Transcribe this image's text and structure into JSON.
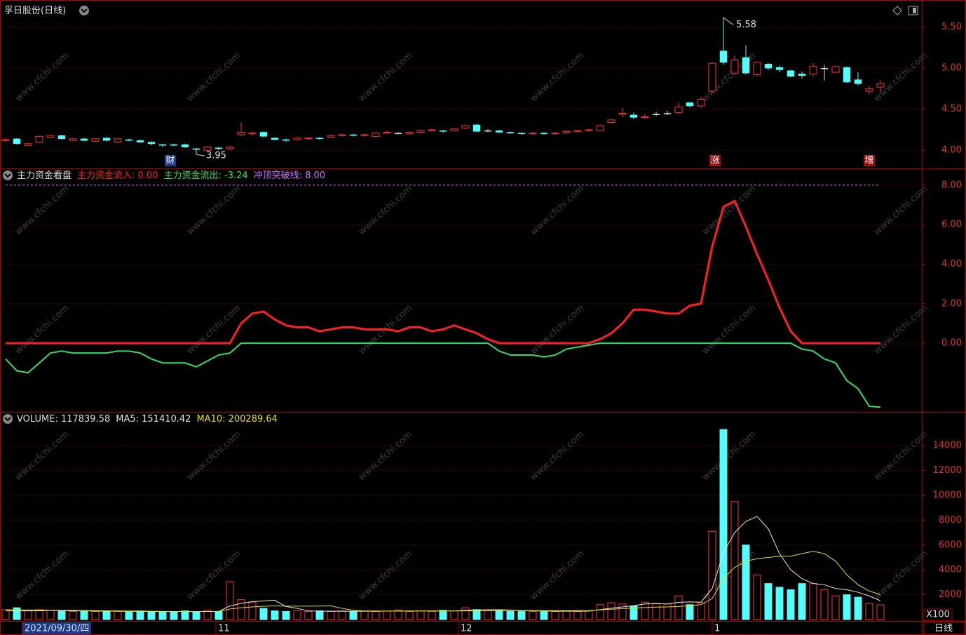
{
  "watermark": "www.cfchi.com",
  "period": "日线",
  "chart_data": [
    {
      "type": "candlestick",
      "title": "孚日股份(日线)",
      "up_color": "#ff3232",
      "down_color": "#54fcfc",
      "flat_color": "#dddddd",
      "ylim": [
        3.78,
        5.83
      ],
      "yticks": [
        {
          "value": 4,
          "label": "4.00"
        },
        {
          "value": 4.5,
          "label": "4.50"
        },
        {
          "value": 5,
          "label": "5.00"
        },
        {
          "value": 5.5,
          "label": "5.50"
        }
      ],
      "grid": true,
      "open": [
        4.12,
        4.14,
        4.06,
        4.1,
        4.16,
        4.18,
        4.12,
        4.14,
        4.11,
        4.15,
        4.1,
        4.13,
        4.12,
        4.1,
        4.07,
        4.07,
        4.07,
        4.02,
        4.0,
        4.03,
        4.02,
        4.19,
        4.2,
        4.22,
        4.15,
        4.13,
        4.13,
        4.14,
        4.15,
        4.16,
        4.18,
        4.19,
        4.18,
        4.17,
        4.21,
        4.21,
        4.2,
        4.22,
        4.24,
        4.24,
        4.24,
        4.27,
        4.31,
        4.24,
        4.24,
        4.22,
        4.21,
        4.2,
        4.21,
        4.2,
        4.21,
        4.23,
        4.24,
        4.24,
        4.34,
        4.44,
        4.43,
        4.4,
        4.44,
        4.45,
        4.46,
        4.58,
        4.54,
        4.72,
        5.21,
        4.94,
        5.13,
        4.92,
        5.05,
        5.01,
        4.97,
        4.93,
        4.93,
        5.0,
        4.95,
        5.01,
        4.86,
        4.72,
        4.77
      ],
      "close": [
        4.13,
        4.08,
        4.08,
        4.17,
        4.18,
        4.14,
        4.14,
        4.12,
        4.14,
        4.12,
        4.14,
        4.12,
        4.1,
        4.08,
        4.06,
        4.06,
        4.04,
        4.01,
        4.04,
        4.02,
        4.04,
        4.22,
        4.21,
        4.17,
        4.13,
        4.12,
        4.15,
        4.15,
        4.14,
        4.18,
        4.19,
        4.18,
        4.19,
        4.21,
        4.22,
        4.21,
        4.22,
        4.24,
        4.25,
        4.23,
        4.26,
        4.3,
        4.23,
        4.24,
        4.22,
        4.21,
        4.2,
        4.21,
        4.2,
        4.21,
        4.23,
        4.24,
        4.25,
        4.3,
        4.37,
        4.45,
        4.4,
        4.41,
        4.44,
        4.45,
        4.53,
        4.54,
        4.62,
        5.06,
        5.07,
        5.1,
        4.94,
        5.07,
        5.0,
        4.98,
        4.9,
        4.91,
        5.02,
        5.0,
        5.02,
        4.83,
        4.81,
        4.75,
        4.81
      ],
      "high": [
        4.15,
        4.15,
        4.09,
        4.18,
        4.19,
        4.19,
        4.15,
        4.15,
        4.15,
        4.16,
        4.15,
        4.14,
        4.13,
        4.11,
        4.08,
        4.08,
        4.08,
        4.03,
        4.05,
        4.04,
        4.05,
        4.34,
        4.23,
        4.23,
        4.16,
        4.14,
        4.16,
        4.16,
        4.16,
        4.19,
        4.2,
        4.2,
        4.2,
        4.22,
        4.24,
        4.22,
        4.23,
        4.25,
        4.26,
        4.25,
        4.27,
        4.31,
        4.32,
        4.26,
        4.25,
        4.23,
        4.22,
        4.22,
        4.22,
        4.22,
        4.24,
        4.25,
        4.26,
        4.31,
        4.38,
        4.52,
        4.46,
        4.44,
        4.47,
        4.48,
        4.58,
        4.59,
        4.65,
        5.07,
        5.58,
        5.15,
        5.28,
        5.08,
        5.06,
        5.03,
        4.98,
        4.96,
        5.06,
        5.04,
        5.03,
        5.02,
        4.95,
        4.78,
        4.85
      ],
      "low": [
        4.1,
        4.07,
        4.05,
        4.09,
        4.15,
        4.13,
        4.11,
        4.11,
        4.1,
        4.11,
        4.09,
        4.11,
        4.09,
        4.06,
        4.04,
        4.05,
        4.03,
        3.95,
        3.98,
        4.0,
        4.01,
        4.17,
        4.18,
        4.16,
        4.12,
        4.1,
        4.12,
        4.13,
        4.13,
        4.15,
        4.17,
        4.17,
        4.17,
        4.16,
        4.2,
        4.19,
        4.19,
        4.21,
        4.23,
        4.21,
        4.23,
        4.26,
        4.22,
        4.22,
        4.21,
        4.2,
        4.19,
        4.19,
        4.19,
        4.19,
        4.2,
        4.22,
        4.23,
        4.23,
        4.33,
        4.4,
        4.38,
        4.38,
        4.42,
        4.43,
        4.44,
        4.52,
        4.52,
        4.7,
        5.04,
        4.92,
        4.92,
        4.9,
        4.98,
        4.95,
        4.89,
        4.87,
        4.9,
        4.85,
        4.94,
        4.82,
        4.79,
        4.69,
        4.7
      ],
      "markers": [
        "财",
        "涨",
        "增"
      ]
    },
    {
      "type": "line",
      "title": "主力资金看盘",
      "ylim": [
        -3.48,
        8.85
      ],
      "yticks": [
        {
          "value": 0,
          "label": "0.00"
        },
        {
          "value": 2,
          "label": "2.00"
        },
        {
          "value": 4,
          "label": "4.00"
        },
        {
          "value": 6,
          "label": "6.00"
        },
        {
          "value": 8,
          "label": "8.00"
        }
      ],
      "grid": true,
      "series": [
        {
          "legend": "主力资金流入: 0.00",
          "color": "#ff2020",
          "values": [
            0,
            0,
            0,
            0,
            0,
            0,
            0,
            0,
            0,
            0,
            0,
            0,
            0,
            0,
            0,
            0,
            0,
            0,
            0,
            0,
            0,
            1.0,
            1.5,
            1.6,
            1.2,
            0.9,
            0.8,
            0.8,
            0.6,
            0.7,
            0.8,
            0.8,
            0.7,
            0.7,
            0.7,
            0.6,
            0.8,
            0.8,
            0.6,
            0.7,
            0.9,
            0.7,
            0.5,
            0.2,
            0,
            0,
            0,
            0,
            0,
            0,
            0,
            0,
            0,
            0.2,
            0.5,
            1.0,
            1.7,
            1.7,
            1.6,
            1.5,
            1.5,
            1.9,
            2.0,
            4.9,
            6.9,
            7.2,
            5.9,
            4.5,
            3.2,
            1.8,
            0.6,
            0,
            0,
            0,
            0,
            0,
            0,
            0,
            0
          ]
        },
        {
          "legend": "主力资金流出: -3.24",
          "color": "#30e060",
          "values": [
            -0.8,
            -1.4,
            -1.5,
            -1.0,
            -0.5,
            -0.4,
            -0.5,
            -0.5,
            -0.5,
            -0.5,
            -0.4,
            -0.4,
            -0.5,
            -0.8,
            -1.0,
            -1.0,
            -1.0,
            -1.2,
            -0.9,
            -0.6,
            -0.5,
            0,
            0,
            0,
            0,
            0,
            0,
            0,
            0,
            0,
            0,
            0,
            0,
            0,
            0,
            0,
            0,
            0,
            0,
            0,
            0,
            0,
            0,
            0,
            -0.4,
            -0.6,
            -0.6,
            -0.6,
            -0.7,
            -0.6,
            -0.3,
            -0.2,
            -0.1,
            0,
            0,
            0,
            0,
            0,
            0,
            0,
            0,
            0,
            0,
            0,
            0,
            0,
            0,
            0,
            0,
            0,
            0,
            -0.3,
            -0.4,
            -0.8,
            -1.0,
            -1.9,
            -2.3,
            -3.2,
            -3.24
          ]
        },
        {
          "legend": "冲顶突破线: 8.00",
          "color": "#d070ff",
          "level": 8
        }
      ]
    },
    {
      "type": "bar",
      "title": "VOLUME: 117839.58",
      "unit_label": "X100",
      "up_color": "#ff3232",
      "down_color": "#54fcfc",
      "ylim": [
        0,
        16720
      ],
      "yticks": [
        2000,
        4000,
        6000,
        8000,
        10000,
        12000,
        14000
      ],
      "grid": true,
      "values": [
        800,
        950,
        700,
        800,
        750,
        700,
        650,
        700,
        650,
        700,
        650,
        600,
        700,
        650,
        600,
        650,
        700,
        600,
        750,
        650,
        3050,
        1600,
        1400,
        900,
        700,
        650,
        700,
        650,
        700,
        650,
        700,
        650,
        700,
        650,
        700,
        750,
        650,
        700,
        650,
        750,
        700,
        950,
        800,
        700,
        750,
        650,
        700,
        650,
        700,
        650,
        700,
        650,
        700,
        1200,
        1350,
        1250,
        1100,
        1400,
        1300,
        1250,
        1900,
        1200,
        1350,
        7100,
        15300,
        9500,
        6000,
        3600,
        2900,
        2600,
        2400,
        2900,
        2900,
        2400,
        1900,
        2000,
        1800,
        1300,
        1178
      ],
      "series": [
        {
          "legend": "MA5: 151410.42",
          "color": "#e8e8e8",
          "values": [
            700,
            700,
            700,
            700,
            750,
            720,
            700,
            700,
            680,
            680,
            680,
            660,
            660,
            650,
            640,
            640,
            640,
            640,
            650,
            650,
            1100,
            1300,
            1450,
            1500,
            1550,
            1050,
            900,
            700,
            680,
            670,
            680,
            670,
            680,
            670,
            680,
            690,
            690,
            690,
            690,
            700,
            700,
            750,
            770,
            790,
            790,
            770,
            720,
            690,
            690,
            670,
            680,
            670,
            680,
            800,
            920,
            1020,
            1120,
            1260,
            1280,
            1260,
            1390,
            1420,
            1400,
            2500,
            5400,
            7000,
            7900,
            8300,
            7300,
            5300,
            4000,
            3300,
            2900,
            2800,
            2500,
            2400,
            2200,
            1900,
            1514
          ]
        },
        {
          "legend": "MA10: 200289.64",
          "color": "#e8e000",
          "values": [
            780,
            780,
            770,
            770,
            760,
            750,
            740,
            730,
            720,
            710,
            700,
            690,
            680,
            670,
            660,
            650,
            650,
            650,
            650,
            650,
            850,
            950,
            1020,
            1070,
            1100,
            1080,
            1080,
            1080,
            1090,
            1100,
            900,
            750,
            700,
            690,
            680,
            680,
            680,
            690,
            690,
            690,
            690,
            700,
            710,
            720,
            730,
            730,
            730,
            720,
            720,
            720,
            720,
            720,
            720,
            780,
            830,
            880,
            930,
            970,
            1000,
            1020,
            1050,
            1120,
            1200,
            1700,
            3300,
            4200,
            4700,
            4900,
            5000,
            5100,
            5100,
            5300,
            5500,
            5300,
            4700,
            3600,
            2800,
            2300,
            2003
          ]
        }
      ],
      "x_labels": [
        "2021/09/30/四",
        "11",
        "12",
        "1"
      ]
    }
  ]
}
